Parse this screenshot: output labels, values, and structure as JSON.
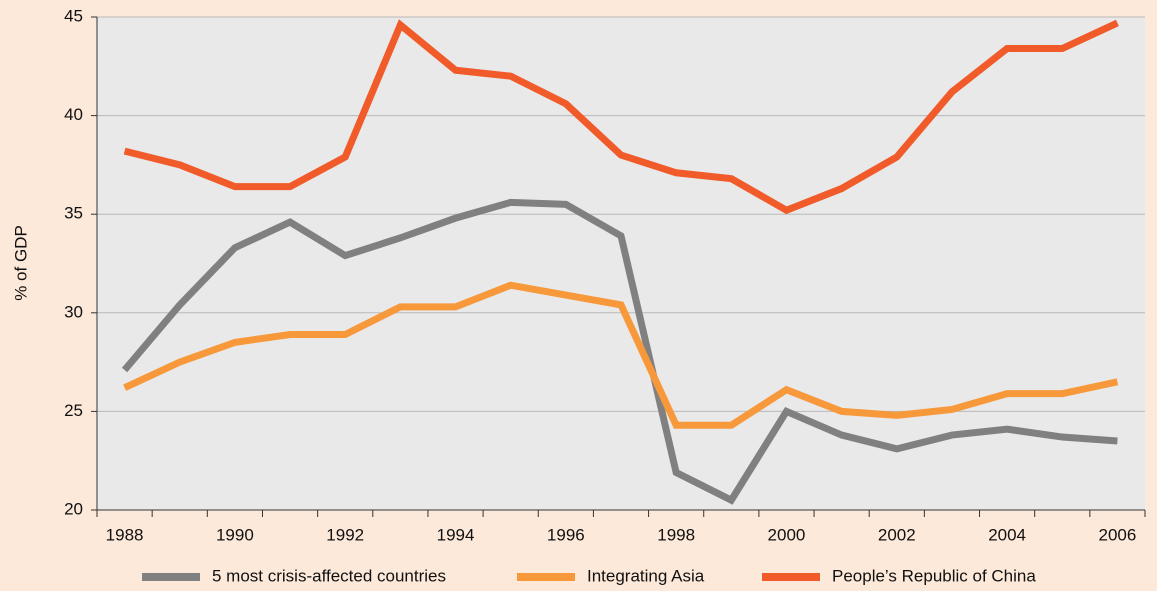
{
  "chart_data": {
    "type": "line",
    "y_label": "% of GDP",
    "categories": [
      "1988",
      null,
      "1990",
      null,
      "1992",
      null,
      "1994",
      null,
      "1996",
      null,
      "1998",
      null,
      "2000",
      null,
      "2002",
      null,
      "2004",
      null,
      "2006"
    ],
    "series": [
      {
        "name": "5 most crisis-affected countries",
        "color": "#808080",
        "values": [
          27.1,
          30.4,
          33.3,
          34.6,
          32.9,
          33.8,
          34.8,
          35.6,
          35.5,
          33.9,
          21.9,
          20.5,
          25.0,
          23.8,
          23.1,
          23.8,
          24.1,
          23.7,
          23.5
        ]
      },
      {
        "name": "Integrating Asia",
        "color": "#f7993b",
        "values": [
          26.2,
          27.5,
          28.5,
          28.9,
          28.9,
          30.3,
          30.3,
          31.4,
          30.9,
          30.4,
          24.3,
          24.3,
          26.1,
          25.0,
          24.8,
          25.1,
          25.9,
          25.9,
          26.5
        ]
      },
      {
        "name": "People’s Republic of China",
        "color": "#f15a29",
        "values": [
          38.2,
          37.5,
          36.4,
          36.4,
          37.9,
          44.6,
          42.3,
          42.0,
          40.6,
          38.0,
          37.1,
          36.8,
          35.2,
          36.3,
          37.9,
          41.2,
          43.4,
          43.4,
          44.7
        ]
      }
    ],
    "ylim": [
      20,
      45
    ],
    "yticks": [
      20,
      25,
      30,
      35,
      40,
      45
    ],
    "grid": true,
    "legend": "bottom"
  }
}
